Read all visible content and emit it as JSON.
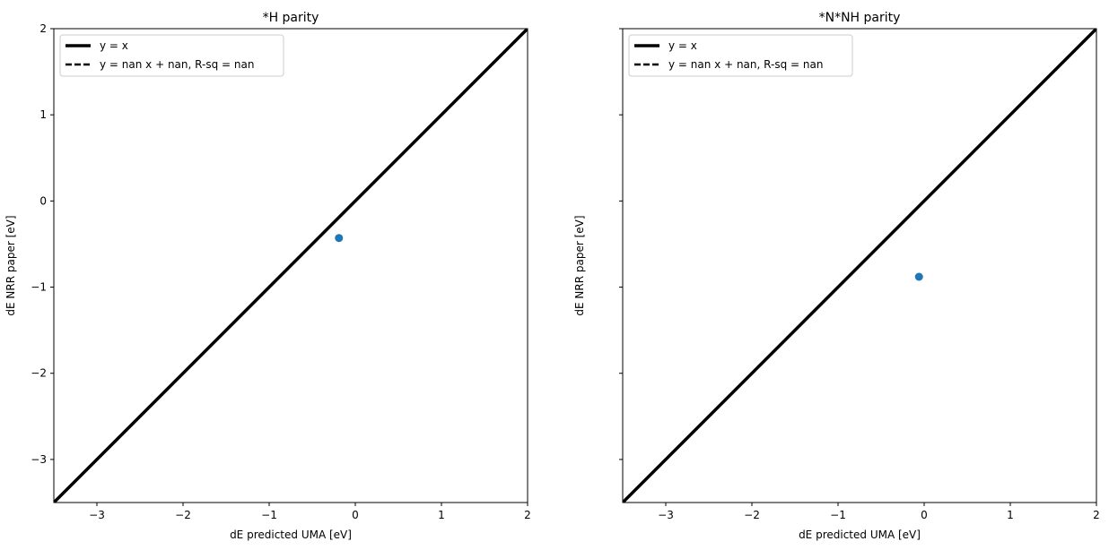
{
  "chart_data": [
    {
      "type": "scatter",
      "title": "*H parity",
      "xlabel": "dE predicted UMA [eV]",
      "ylabel": "dE NRR paper [eV]",
      "xlim": [
        -3.5,
        2
      ],
      "ylim": [
        -3.5,
        2
      ],
      "xticks": [
        -3,
        -2,
        -1,
        0,
        1,
        2
      ],
      "yticks": [
        -3,
        -2,
        -1,
        0,
        1,
        2
      ],
      "show_ytick_labels": true,
      "grid": false,
      "points": [
        {
          "x": -0.19,
          "y": -0.43
        }
      ],
      "point_color": "#1f77b4",
      "legend": {
        "placement": "upper-left",
        "entries": [
          {
            "label": "y = x",
            "style": "solid"
          },
          {
            "label": "y = nan x + nan, R-sq = nan",
            "style": "dashed"
          }
        ]
      }
    },
    {
      "type": "scatter",
      "title": "*N*NH parity",
      "xlabel": "dE predicted UMA [eV]",
      "ylabel": "dE NRR paper [eV]",
      "xlim": [
        -3.5,
        2
      ],
      "ylim": [
        -3.5,
        2
      ],
      "xticks": [
        -3,
        -2,
        -1,
        0,
        1,
        2
      ],
      "yticks": [
        -3,
        -2,
        -1,
        0,
        1,
        2
      ],
      "show_ytick_labels": false,
      "grid": false,
      "points": [
        {
          "x": -0.06,
          "y": -0.88
        }
      ],
      "point_color": "#1f77b4",
      "legend": {
        "placement": "upper-left",
        "entries": [
          {
            "label": "y = x",
            "style": "solid"
          },
          {
            "label": "y = nan x + nan, R-sq = nan",
            "style": "dashed"
          }
        ]
      }
    }
  ]
}
